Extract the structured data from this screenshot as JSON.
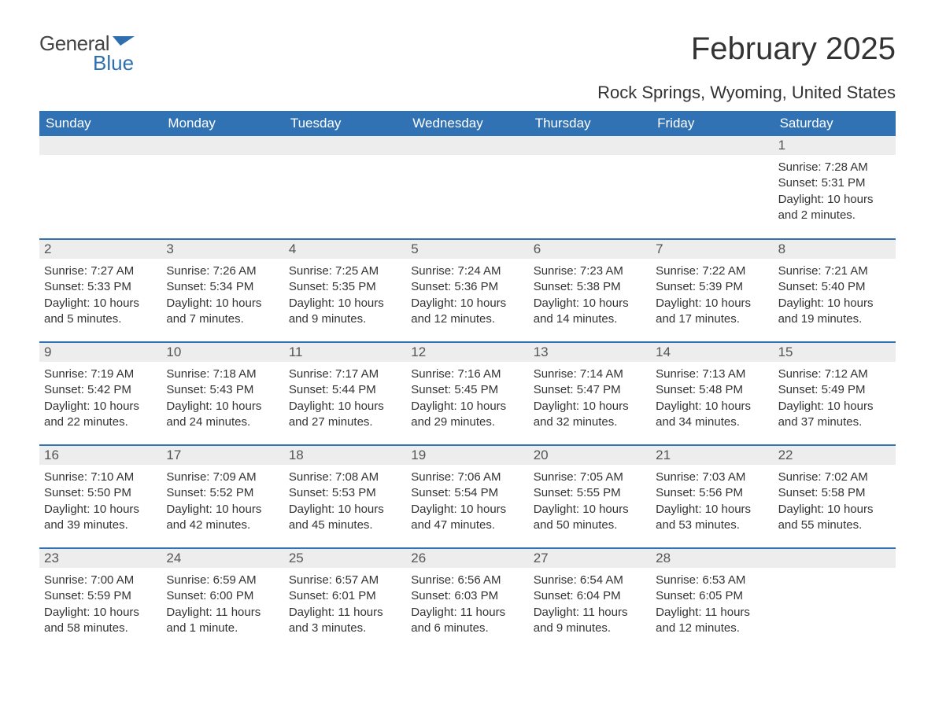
{
  "brand": {
    "name1": "General",
    "name2": "Blue",
    "color1": "#444444",
    "color2": "#2f6fb0"
  },
  "title": "February 2025",
  "location": "Rock Springs, Wyoming, United States",
  "style": {
    "header_bg": "#3072b3",
    "header_fg": "#ffffff",
    "row_divider": "#3072b3",
    "daynum_bg": "#ededed",
    "body_bg": "#ffffff",
    "text_color": "#333333",
    "title_fontsize": 40,
    "location_fontsize": 22,
    "dow_fontsize": 17,
    "daynum_fontsize": 17,
    "body_fontsize": 15
  },
  "daysOfWeek": [
    "Sunday",
    "Monday",
    "Tuesday",
    "Wednesday",
    "Thursday",
    "Friday",
    "Saturday"
  ],
  "weeks": [
    [
      null,
      null,
      null,
      null,
      null,
      null,
      {
        "n": "1",
        "sunrise": "Sunrise: 7:28 AM",
        "sunset": "Sunset: 5:31 PM",
        "daylight": "Daylight: 10 hours and 2 minutes."
      }
    ],
    [
      {
        "n": "2",
        "sunrise": "Sunrise: 7:27 AM",
        "sunset": "Sunset: 5:33 PM",
        "daylight": "Daylight: 10 hours and 5 minutes."
      },
      {
        "n": "3",
        "sunrise": "Sunrise: 7:26 AM",
        "sunset": "Sunset: 5:34 PM",
        "daylight": "Daylight: 10 hours and 7 minutes."
      },
      {
        "n": "4",
        "sunrise": "Sunrise: 7:25 AM",
        "sunset": "Sunset: 5:35 PM",
        "daylight": "Daylight: 10 hours and 9 minutes."
      },
      {
        "n": "5",
        "sunrise": "Sunrise: 7:24 AM",
        "sunset": "Sunset: 5:36 PM",
        "daylight": "Daylight: 10 hours and 12 minutes."
      },
      {
        "n": "6",
        "sunrise": "Sunrise: 7:23 AM",
        "sunset": "Sunset: 5:38 PM",
        "daylight": "Daylight: 10 hours and 14 minutes."
      },
      {
        "n": "7",
        "sunrise": "Sunrise: 7:22 AM",
        "sunset": "Sunset: 5:39 PM",
        "daylight": "Daylight: 10 hours and 17 minutes."
      },
      {
        "n": "8",
        "sunrise": "Sunrise: 7:21 AM",
        "sunset": "Sunset: 5:40 PM",
        "daylight": "Daylight: 10 hours and 19 minutes."
      }
    ],
    [
      {
        "n": "9",
        "sunrise": "Sunrise: 7:19 AM",
        "sunset": "Sunset: 5:42 PM",
        "daylight": "Daylight: 10 hours and 22 minutes."
      },
      {
        "n": "10",
        "sunrise": "Sunrise: 7:18 AM",
        "sunset": "Sunset: 5:43 PM",
        "daylight": "Daylight: 10 hours and 24 minutes."
      },
      {
        "n": "11",
        "sunrise": "Sunrise: 7:17 AM",
        "sunset": "Sunset: 5:44 PM",
        "daylight": "Daylight: 10 hours and 27 minutes."
      },
      {
        "n": "12",
        "sunrise": "Sunrise: 7:16 AM",
        "sunset": "Sunset: 5:45 PM",
        "daylight": "Daylight: 10 hours and 29 minutes."
      },
      {
        "n": "13",
        "sunrise": "Sunrise: 7:14 AM",
        "sunset": "Sunset: 5:47 PM",
        "daylight": "Daylight: 10 hours and 32 minutes."
      },
      {
        "n": "14",
        "sunrise": "Sunrise: 7:13 AM",
        "sunset": "Sunset: 5:48 PM",
        "daylight": "Daylight: 10 hours and 34 minutes."
      },
      {
        "n": "15",
        "sunrise": "Sunrise: 7:12 AM",
        "sunset": "Sunset: 5:49 PM",
        "daylight": "Daylight: 10 hours and 37 minutes."
      }
    ],
    [
      {
        "n": "16",
        "sunrise": "Sunrise: 7:10 AM",
        "sunset": "Sunset: 5:50 PM",
        "daylight": "Daylight: 10 hours and 39 minutes."
      },
      {
        "n": "17",
        "sunrise": "Sunrise: 7:09 AM",
        "sunset": "Sunset: 5:52 PM",
        "daylight": "Daylight: 10 hours and 42 minutes."
      },
      {
        "n": "18",
        "sunrise": "Sunrise: 7:08 AM",
        "sunset": "Sunset: 5:53 PM",
        "daylight": "Daylight: 10 hours and 45 minutes."
      },
      {
        "n": "19",
        "sunrise": "Sunrise: 7:06 AM",
        "sunset": "Sunset: 5:54 PM",
        "daylight": "Daylight: 10 hours and 47 minutes."
      },
      {
        "n": "20",
        "sunrise": "Sunrise: 7:05 AM",
        "sunset": "Sunset: 5:55 PM",
        "daylight": "Daylight: 10 hours and 50 minutes."
      },
      {
        "n": "21",
        "sunrise": "Sunrise: 7:03 AM",
        "sunset": "Sunset: 5:56 PM",
        "daylight": "Daylight: 10 hours and 53 minutes."
      },
      {
        "n": "22",
        "sunrise": "Sunrise: 7:02 AM",
        "sunset": "Sunset: 5:58 PM",
        "daylight": "Daylight: 10 hours and 55 minutes."
      }
    ],
    [
      {
        "n": "23",
        "sunrise": "Sunrise: 7:00 AM",
        "sunset": "Sunset: 5:59 PM",
        "daylight": "Daylight: 10 hours and 58 minutes."
      },
      {
        "n": "24",
        "sunrise": "Sunrise: 6:59 AM",
        "sunset": "Sunset: 6:00 PM",
        "daylight": "Daylight: 11 hours and 1 minute."
      },
      {
        "n": "25",
        "sunrise": "Sunrise: 6:57 AM",
        "sunset": "Sunset: 6:01 PM",
        "daylight": "Daylight: 11 hours and 3 minutes."
      },
      {
        "n": "26",
        "sunrise": "Sunrise: 6:56 AM",
        "sunset": "Sunset: 6:03 PM",
        "daylight": "Daylight: 11 hours and 6 minutes."
      },
      {
        "n": "27",
        "sunrise": "Sunrise: 6:54 AM",
        "sunset": "Sunset: 6:04 PM",
        "daylight": "Daylight: 11 hours and 9 minutes."
      },
      {
        "n": "28",
        "sunrise": "Sunrise: 6:53 AM",
        "sunset": "Sunset: 6:05 PM",
        "daylight": "Daylight: 11 hours and 12 minutes."
      },
      null
    ]
  ]
}
